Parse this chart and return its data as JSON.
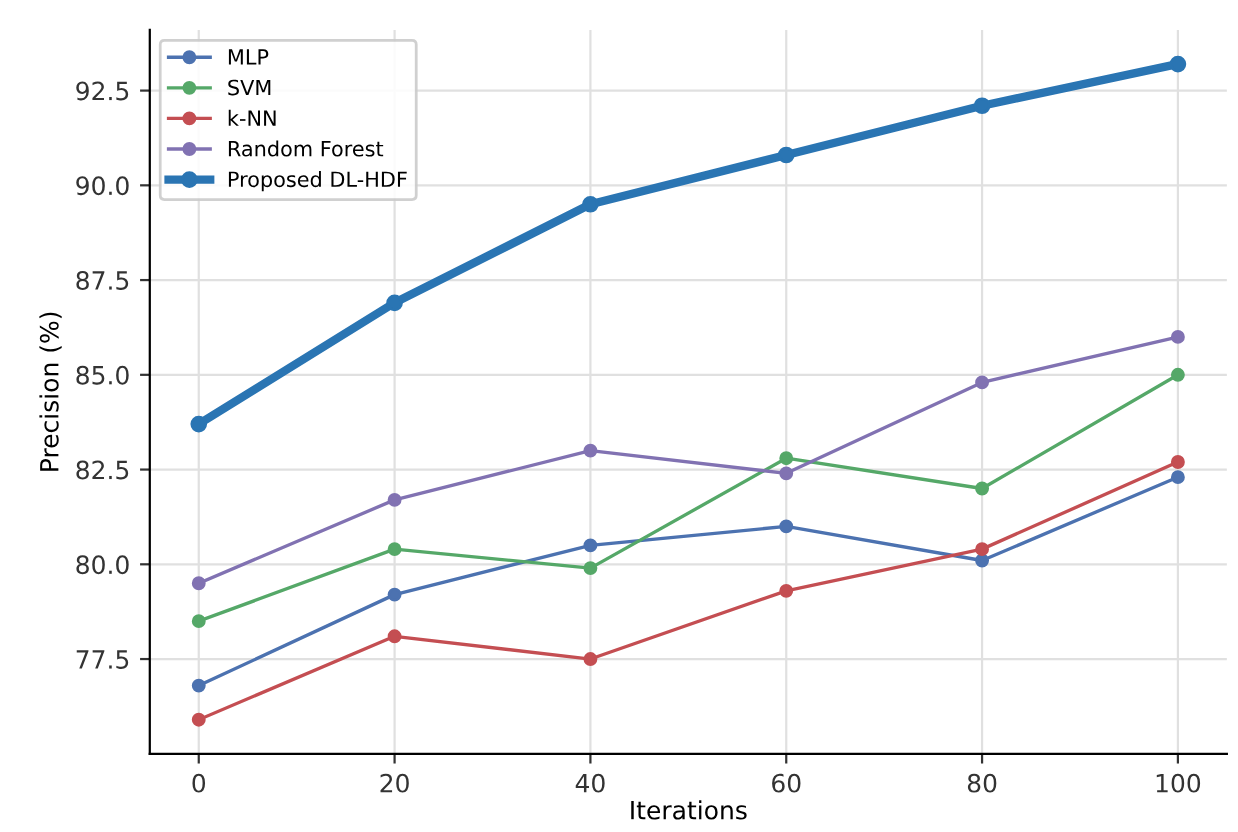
{
  "chart_data": {
    "type": "line",
    "xlabel": "Iterations",
    "ylabel": "Precision (%)",
    "x": [
      0,
      20,
      40,
      60,
      80,
      100
    ],
    "series": [
      {
        "name": "MLP",
        "color": "#4c72b0",
        "values": [
          76.8,
          79.2,
          80.5,
          81.0,
          80.1,
          82.3
        ]
      },
      {
        "name": "SVM",
        "color": "#55a868",
        "values": [
          78.5,
          80.4,
          79.9,
          82.8,
          82.0,
          85.0
        ]
      },
      {
        "name": "k-NN",
        "color": "#c44e52",
        "values": [
          75.9,
          78.1,
          77.5,
          79.3,
          80.4,
          82.7
        ]
      },
      {
        "name": "Random Forest",
        "color": "#8172b2",
        "values": [
          79.5,
          81.7,
          83.0,
          82.4,
          84.8,
          86.0
        ]
      },
      {
        "name": "Proposed DL-HDF",
        "color": "#2a75b3",
        "values": [
          83.7,
          86.9,
          89.5,
          90.8,
          92.1,
          93.2
        ]
      }
    ],
    "xlim": [
      -5,
      105
    ],
    "xticks": [
      0,
      20,
      40,
      60,
      80,
      100
    ],
    "ylim": [
      75.0,
      94.1
    ],
    "yticks": [
      {
        "value": 77.5,
        "label": "77.5"
      },
      {
        "value": 80.0,
        "label": "80.0"
      },
      {
        "value": 82.5,
        "label": "82.5"
      },
      {
        "value": 85.0,
        "label": "85.0"
      },
      {
        "value": 87.5,
        "label": "87.5"
      },
      {
        "value": 90.0,
        "label": "90.0"
      },
      {
        "value": 92.5,
        "label": "92.5"
      }
    ],
    "grid": true,
    "legend": "top left",
    "marker": "circle",
    "line_style": "solid"
  }
}
